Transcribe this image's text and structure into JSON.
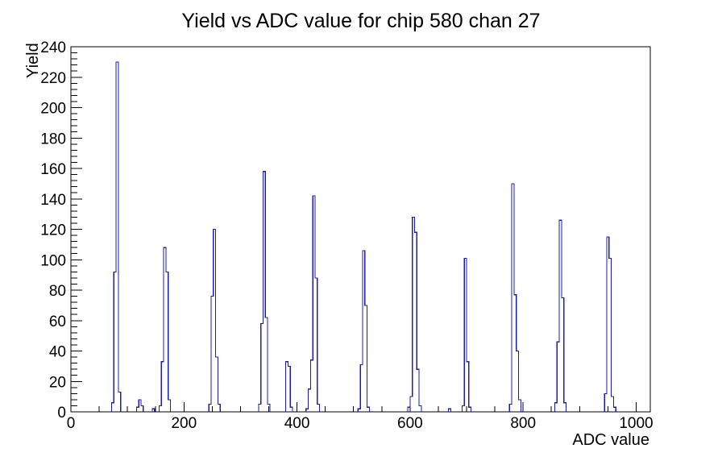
{
  "window": {
    "background": "#ffffff"
  },
  "chart_data": {
    "type": "bar",
    "subtype": "histogram-outline",
    "title": "Yield vs ADC value for chip 580 chan 27",
    "xlabel": "ADC value",
    "ylabel": "Yield",
    "xlim": [
      0,
      1025
    ],
    "ylim": [
      0,
      240
    ],
    "x_major_ticks": [
      0,
      200,
      400,
      600,
      800,
      1000
    ],
    "x_major_tick_labels": [
      "0",
      "200",
      "400",
      "600",
      "800",
      "1000"
    ],
    "x_minor_step": 50,
    "y_major_step": 20,
    "y_major_tick_labels": [
      "0",
      "20",
      "40",
      "60",
      "80",
      "100",
      "120",
      "140",
      "160",
      "180",
      "200",
      "220",
      "240"
    ],
    "y_minor_step": 4,
    "grid": false,
    "legend": "none",
    "bin_width": 4,
    "line_color": "#1c1cae",
    "axis_color": "#000000",
    "bins": [
      [
        72,
        6
      ],
      [
        76,
        92
      ],
      [
        80,
        230
      ],
      [
        84,
        13
      ],
      [
        116,
        3
      ],
      [
        120,
        8
      ],
      [
        124,
        4
      ],
      [
        144,
        2
      ],
      [
        156,
        4
      ],
      [
        160,
        33
      ],
      [
        164,
        108
      ],
      [
        168,
        92
      ],
      [
        172,
        8
      ],
      [
        244,
        5
      ],
      [
        248,
        76
      ],
      [
        252,
        120
      ],
      [
        256,
        36
      ],
      [
        260,
        5
      ],
      [
        332,
        5
      ],
      [
        336,
        58
      ],
      [
        340,
        158
      ],
      [
        344,
        62
      ],
      [
        348,
        5
      ],
      [
        380,
        33
      ],
      [
        384,
        30
      ],
      [
        388,
        3
      ],
      [
        416,
        2
      ],
      [
        420,
        15
      ],
      [
        424,
        34
      ],
      [
        428,
        142
      ],
      [
        432,
        88
      ],
      [
        436,
        5
      ],
      [
        508,
        2
      ],
      [
        512,
        31
      ],
      [
        516,
        106
      ],
      [
        520,
        70
      ],
      [
        524,
        3
      ],
      [
        596,
        3
      ],
      [
        600,
        10
      ],
      [
        604,
        128
      ],
      [
        608,
        118
      ],
      [
        612,
        28
      ],
      [
        616,
        4
      ],
      [
        668,
        2
      ],
      [
        692,
        4
      ],
      [
        696,
        101
      ],
      [
        700,
        33
      ],
      [
        704,
        3
      ],
      [
        776,
        5
      ],
      [
        780,
        150
      ],
      [
        784,
        77
      ],
      [
        788,
        40
      ],
      [
        792,
        8
      ],
      [
        856,
        6
      ],
      [
        860,
        46
      ],
      [
        864,
        126
      ],
      [
        868,
        75
      ],
      [
        872,
        6
      ],
      [
        944,
        12
      ],
      [
        948,
        115
      ],
      [
        952,
        101
      ],
      [
        956,
        10
      ],
      [
        960,
        3
      ]
    ]
  }
}
